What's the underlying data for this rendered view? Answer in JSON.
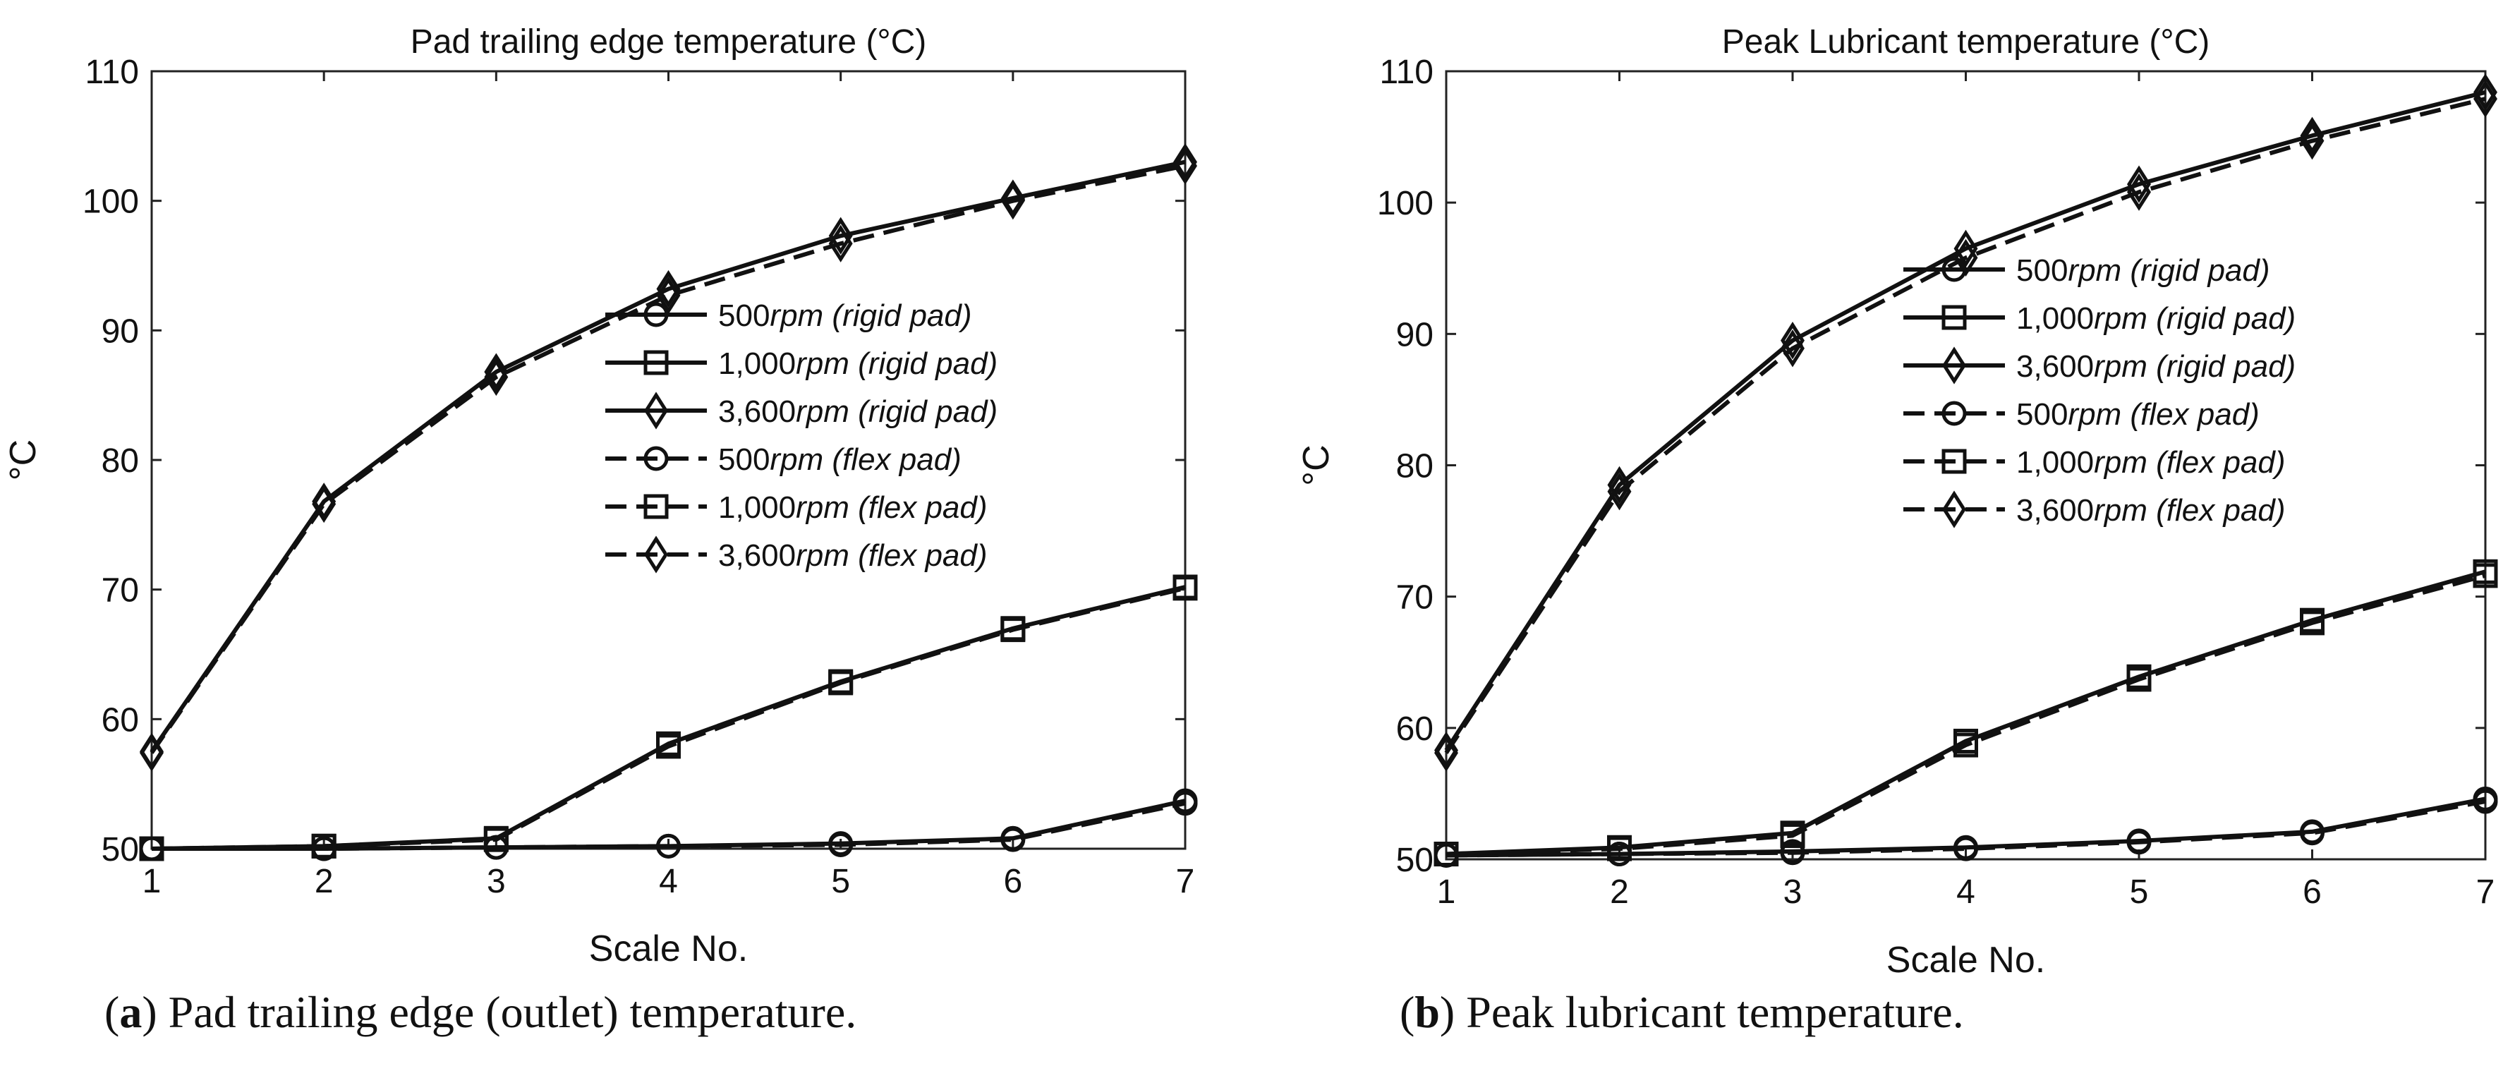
{
  "figure": {
    "captions": [
      {
        "letter": "a",
        "text": "Pad trailing edge (outlet) temperature."
      },
      {
        "letter": "b",
        "text": "Peak lubricant temperature."
      }
    ]
  },
  "chart_data": [
    {
      "type": "line",
      "title": "Pad trailing edge temperature (°C)",
      "xlabel": "Scale No.",
      "ylabel": "°C",
      "xlim": [
        1,
        7
      ],
      "ylim": [
        50,
        110
      ],
      "xticks": [
        1,
        2,
        3,
        4,
        5,
        6,
        7
      ],
      "yticks": [
        50,
        60,
        70,
        80,
        90,
        100,
        110
      ],
      "x": [
        1,
        2,
        3,
        4,
        5,
        6,
        7
      ],
      "legend_position": "right",
      "series": [
        {
          "name": "500rpm (rigid pad)",
          "label_num": "500",
          "label_it": "rpm (rigid pad)",
          "marker": "circle",
          "dash": "solid",
          "values": [
            50.0,
            50.0,
            50.1,
            50.2,
            50.4,
            50.8,
            53.7
          ]
        },
        {
          "name": "1,000rpm (rigid pad)",
          "label_num": "1,000",
          "label_it": "rpm (rigid pad)",
          "marker": "square",
          "dash": "solid",
          "values": [
            50.0,
            50.2,
            50.8,
            58.1,
            62.9,
            67.0,
            70.2
          ]
        },
        {
          "name": "3,600rpm (rigid pad)",
          "label_num": "3,600",
          "label_it": "rpm (rigid pad)",
          "marker": "diamond",
          "dash": "solid",
          "values": [
            57.5,
            76.8,
            86.8,
            93.2,
            97.3,
            100.2,
            103.0
          ]
        },
        {
          "name": "500rpm (flex pad)",
          "label_num": "500",
          "label_it": "rpm (flex pad)",
          "marker": "circle",
          "dash": "dashed",
          "values": [
            50.0,
            50.0,
            50.1,
            50.2,
            50.3,
            50.7,
            53.5
          ]
        },
        {
          "name": "1,000rpm (flex pad)",
          "label_num": "1,000",
          "label_it": "rpm (flex pad)",
          "marker": "square",
          "dash": "dashed",
          "values": [
            50.0,
            50.2,
            50.7,
            57.9,
            62.8,
            66.9,
            70.1
          ]
        },
        {
          "name": "3,600rpm (flex pad)",
          "label_num": "3,600",
          "label_it": "rpm (flex pad)",
          "marker": "diamond",
          "dash": "dashed",
          "values": [
            57.4,
            76.6,
            86.4,
            92.7,
            96.7,
            100.0,
            102.7
          ]
        }
      ]
    },
    {
      "type": "line",
      "title": "Peak Lubricant temperature (°C)",
      "xlabel": "Scale No.",
      "ylabel": "°C",
      "xlim": [
        1,
        7
      ],
      "ylim": [
        50,
        110
      ],
      "xticks": [
        1,
        2,
        3,
        4,
        5,
        6,
        7
      ],
      "yticks": [
        50,
        60,
        70,
        80,
        90,
        100,
        110
      ],
      "x": [
        1,
        2,
        3,
        4,
        5,
        6,
        7
      ],
      "legend_position": "top-right",
      "series": [
        {
          "name": "500rpm (rigid pad)",
          "label_num": "500",
          "label_it": "rpm (rigid pad)",
          "marker": "circle",
          "dash": "solid",
          "values": [
            50.3,
            50.4,
            50.6,
            50.9,
            51.4,
            52.1,
            54.6
          ]
        },
        {
          "name": "1,000rpm (rigid pad)",
          "label_num": "1,000",
          "label_it": "rpm (rigid pad)",
          "marker": "square",
          "dash": "solid",
          "values": [
            50.4,
            50.9,
            52.0,
            59.0,
            63.9,
            68.2,
            71.9
          ]
        },
        {
          "name": "3,600rpm (rigid pad)",
          "label_num": "3,600",
          "label_it": "rpm (rigid pad)",
          "marker": "diamond",
          "dash": "solid",
          "values": [
            58.3,
            78.5,
            89.5,
            96.5,
            101.4,
            105.1,
            108.4
          ]
        },
        {
          "name": "500rpm (flex pad)",
          "label_num": "500",
          "label_it": "rpm (flex pad)",
          "marker": "circle",
          "dash": "dashed",
          "values": [
            50.3,
            50.4,
            50.5,
            50.8,
            51.3,
            52.0,
            54.4
          ]
        },
        {
          "name": "1,000rpm (flex pad)",
          "label_num": "1,000",
          "label_it": "rpm (flex pad)",
          "marker": "square",
          "dash": "dashed",
          "values": [
            50.4,
            50.8,
            51.8,
            58.7,
            63.7,
            68.0,
            71.6
          ]
        },
        {
          "name": "3,600rpm (flex pad)",
          "label_num": "3,600",
          "label_it": "rpm (flex pad)",
          "marker": "diamond",
          "dash": "dashed",
          "values": [
            58.1,
            78.0,
            88.9,
            95.8,
            100.8,
            104.7,
            107.9
          ]
        }
      ]
    }
  ]
}
